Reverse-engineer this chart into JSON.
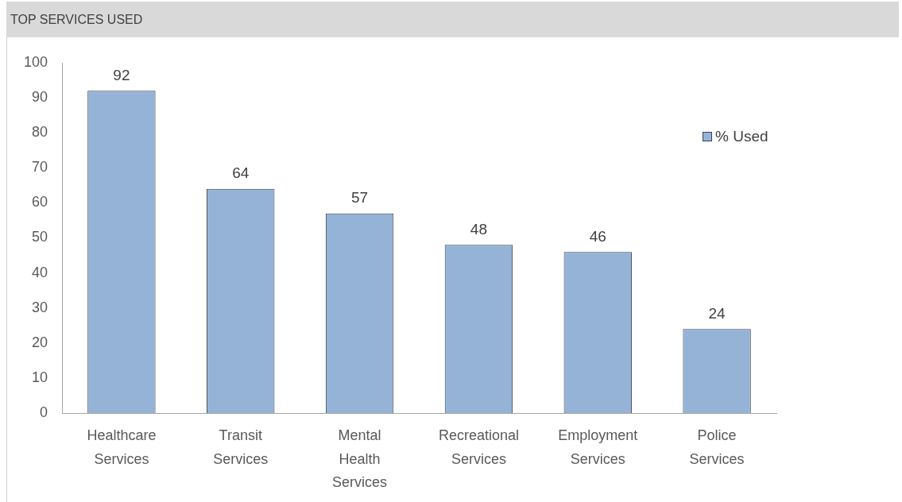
{
  "chart_data": {
    "type": "bar",
    "title": "TOP SERVICES USED",
    "categories": [
      "Healthcare Services",
      "Transit Services",
      "Mental Health Services",
      "Recreational Services",
      "Employment Services",
      "Police Services"
    ],
    "series": [
      {
        "name": "% Used",
        "color": "#95b3d7",
        "values": [
          92,
          64,
          57,
          48,
          46,
          24
        ]
      }
    ],
    "ylim": [
      0,
      100
    ],
    "yticks": [
      0,
      10,
      20,
      30,
      40,
      50,
      60,
      70,
      80,
      90,
      100
    ],
    "grid": false,
    "legend": "top right",
    "data_labels": true
  }
}
